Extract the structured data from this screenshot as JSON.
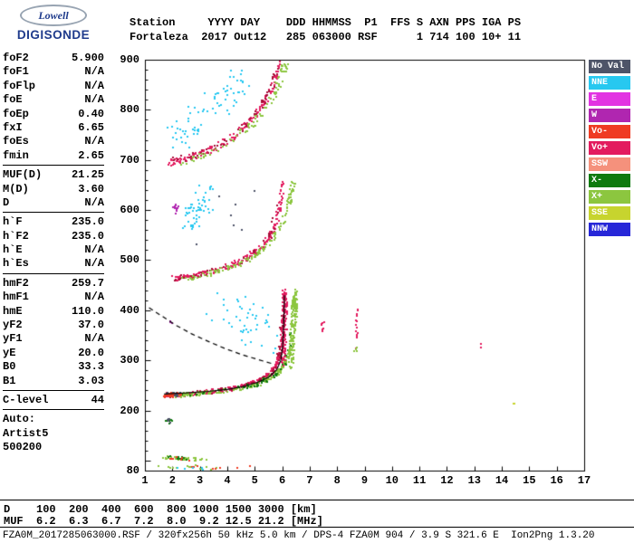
{
  "brand": {
    "name_top": "Lowell",
    "name_bottom": "DIGISONDE"
  },
  "header": {
    "line1": "Station     YYYY DAY    DDD HHMMSS  P1  FFS S AXN PPS IGA PS",
    "line2": "Fortaleza  2017 Out12   285 063000 RSF      1 714 100 10+ 11"
  },
  "params": [
    {
      "label": "foF2",
      "value": "5.900"
    },
    {
      "label": "foF1",
      "value": "N/A"
    },
    {
      "label": "foFlp",
      "value": "N/A"
    },
    {
      "label": "foE",
      "value": "N/A"
    },
    {
      "label": "foEp",
      "value": "0.40"
    },
    {
      "label": "fxI",
      "value": "6.65"
    },
    {
      "label": "foEs",
      "value": "N/A"
    },
    {
      "label": "fmin",
      "value": "2.65"
    },
    {
      "sep": true
    },
    {
      "label": "MUF(D)",
      "value": "21.25"
    },
    {
      "label": "M(D)",
      "value": "3.60"
    },
    {
      "label": "D",
      "value": "N/A"
    },
    {
      "sep": true
    },
    {
      "label": "h`F",
      "value": "235.0"
    },
    {
      "label": "h`F2",
      "value": "235.0"
    },
    {
      "label": "h`E",
      "value": "N/A"
    },
    {
      "label": "h`Es",
      "value": "N/A"
    },
    {
      "sep": true
    },
    {
      "label": "hmF2",
      "value": "259.7"
    },
    {
      "label": "hmF1",
      "value": "N/A"
    },
    {
      "label": "hmE",
      "value": "110.0"
    },
    {
      "label": "yF2",
      "value": "37.0"
    },
    {
      "label": "yF1",
      "value": "N/A"
    },
    {
      "label": "yE",
      "value": "20.0"
    },
    {
      "label": "B0",
      "value": "33.3"
    },
    {
      "label": "B1",
      "value": "3.03"
    },
    {
      "sep": true
    },
    {
      "label": "C-level",
      "value": "44"
    },
    {
      "sep": true
    },
    {
      "label": "Auto:",
      "value": ""
    },
    {
      "label": "Artist5",
      "value": ""
    },
    {
      "label": "500200",
      "value": ""
    }
  ],
  "footer": {
    "d_row": "D    100  200  400  600  800 1000 1500 3000 [km]",
    "muf_row": "MUF  6.2  6.3  6.7  7.2  8.0  9.2 12.5 21.2 [MHz]",
    "status": "FZA0M_2017285063000.RSF / 320fx256h 50 kHz 5.0 km / DPS-4 FZA0M 904 / 3.9 S 321.6 E  Ion2Png 1.3.20"
  },
  "chart_data": {
    "type": "scatter",
    "title": "Fortaleza ionogram 2017-285 06:30:00",
    "xlabel": "[MHz]",
    "ylabel": "[km]",
    "xlim": [
      1,
      17
    ],
    "ylim": [
      80,
      900
    ],
    "x_ticks": [
      1,
      2,
      3,
      4,
      5,
      6,
      7,
      8,
      9,
      10,
      11,
      12,
      13,
      14,
      15,
      16,
      17
    ],
    "y_tick_labels": [
      900,
      800,
      700,
      600,
      500,
      400,
      300,
      200,
      80
    ],
    "y_minor_step": 20,
    "grid": false,
    "legend_position": "right",
    "legend": [
      {
        "label": "No Val",
        "color": "#4e5468"
      },
      {
        "label": "NNE",
        "color": "#27c8f0"
      },
      {
        "label": "E",
        "color": "#e233e2"
      },
      {
        "label": "W",
        "color": "#b026b0"
      },
      {
        "label": "Vo-",
        "color": "#ef3b23"
      },
      {
        "label": "Vo+",
        "color": "#e31b5f"
      },
      {
        "label": "SSW",
        "color": "#f5917c"
      },
      {
        "label": "X-",
        "color": "#0f7a0f"
      },
      {
        "label": "X+",
        "color": "#8cc63f"
      },
      {
        "label": "SSE",
        "color": "#c7d42e"
      },
      {
        "label": "NNW",
        "color": "#2727d8"
      }
    ],
    "traces": [
      {
        "name": "1hop-o",
        "color": "#e31b5f",
        "count": 270,
        "jx": 0.06,
        "jy": 4,
        "points": [
          [
            1.75,
            233
          ],
          [
            2.2,
            234
          ],
          [
            2.7,
            236
          ],
          [
            3.2,
            239
          ],
          [
            3.7,
            242
          ],
          [
            4.2,
            246
          ],
          [
            4.6,
            251
          ],
          [
            5.0,
            258
          ],
          [
            5.3,
            266
          ],
          [
            5.55,
            276
          ],
          [
            5.75,
            291
          ],
          [
            5.88,
            313
          ],
          [
            5.96,
            348
          ],
          [
            6.02,
            395
          ],
          [
            6.06,
            438
          ]
        ]
      },
      {
        "name": "1hop-o-dark",
        "color": "#a80f38",
        "count": 70,
        "jx": 0.08,
        "jy": 5,
        "points": [
          [
            1.8,
            233
          ],
          [
            2.6,
            236
          ],
          [
            3.4,
            240
          ],
          [
            4.2,
            246
          ],
          [
            4.9,
            256
          ],
          [
            5.4,
            268
          ],
          [
            5.75,
            290
          ],
          [
            5.93,
            330
          ],
          [
            6.0,
            390
          ]
        ]
      },
      {
        "name": "1hop-x",
        "color": "#8cc63f",
        "count": 210,
        "jx": 0.07,
        "jy": 4,
        "points": [
          [
            2.1,
            232
          ],
          [
            2.7,
            234
          ],
          [
            3.3,
            237
          ],
          [
            3.9,
            241
          ],
          [
            4.5,
            246
          ],
          [
            5.0,
            253
          ],
          [
            5.4,
            262
          ],
          [
            5.75,
            274
          ],
          [
            6.0,
            289
          ],
          [
            6.2,
            312
          ],
          [
            6.34,
            348
          ],
          [
            6.43,
            398
          ],
          [
            6.47,
            436
          ]
        ]
      },
      {
        "name": "1hop-x-dark",
        "color": "#0f7a0f",
        "count": 45,
        "jx": 0.08,
        "jy": 4,
        "points": [
          [
            2.3,
            233
          ],
          [
            3.2,
            237
          ],
          [
            4.1,
            243
          ],
          [
            5.0,
            253
          ],
          [
            5.7,
            272
          ],
          [
            6.1,
            300
          ],
          [
            6.35,
            355
          ]
        ]
      },
      {
        "name": "1hop-o-col",
        "color": "#e31b5f",
        "count": 120,
        "jx": 0.09,
        "jy": 16,
        "points": [
          [
            6.0,
            300
          ],
          [
            6.03,
            350
          ],
          [
            6.06,
            400
          ],
          [
            6.05,
            435
          ]
        ]
      },
      {
        "name": "1hop-x-col",
        "color": "#8cc63f",
        "count": 120,
        "jx": 0.1,
        "jy": 16,
        "points": [
          [
            6.28,
            295
          ],
          [
            6.34,
            345
          ],
          [
            6.4,
            400
          ],
          [
            6.44,
            432
          ]
        ]
      },
      {
        "name": "start-blob-slate",
        "color": "#4e5468",
        "count": 26,
        "jx": 0.18,
        "jy": 4,
        "points": [
          [
            1.78,
            233
          ],
          [
            2.15,
            235
          ]
        ]
      },
      {
        "name": "start-blob-red",
        "color": "#ef3b23",
        "count": 22,
        "jx": 0.2,
        "jy": 4,
        "points": [
          [
            1.8,
            231
          ],
          [
            2.2,
            236
          ]
        ]
      },
      {
        "name": "2hop-o",
        "color": "#e31b5f",
        "count": 180,
        "jx": 0.07,
        "jy": 5,
        "points": [
          [
            1.9,
            464
          ],
          [
            2.4,
            468
          ],
          [
            2.9,
            473
          ],
          [
            3.4,
            479
          ],
          [
            3.9,
            487
          ],
          [
            4.4,
            498
          ],
          [
            4.8,
            511
          ],
          [
            5.2,
            527
          ],
          [
            5.5,
            546
          ],
          [
            5.7,
            568
          ],
          [
            5.85,
            600
          ],
          [
            5.95,
            635
          ],
          [
            6.02,
            658
          ]
        ]
      },
      {
        "name": "2hop-dark",
        "color": "#a80f38",
        "count": 46,
        "jx": 0.08,
        "jy": 6,
        "points": [
          [
            2.0,
            465
          ],
          [
            3.0,
            474
          ],
          [
            4.0,
            489
          ],
          [
            4.9,
            514
          ],
          [
            5.5,
            548
          ],
          [
            5.85,
            606
          ]
        ]
      },
      {
        "name": "2hop-x",
        "color": "#8cc63f",
        "count": 130,
        "jx": 0.08,
        "jy": 5,
        "points": [
          [
            2.3,
            463
          ],
          [
            3.0,
            470
          ],
          [
            3.7,
            480
          ],
          [
            4.4,
            494
          ],
          [
            5.0,
            512
          ],
          [
            5.5,
            536
          ],
          [
            5.9,
            566
          ],
          [
            6.15,
            600
          ],
          [
            6.3,
            640
          ],
          [
            6.4,
            660
          ]
        ]
      },
      {
        "name": "2hop-cyan",
        "color": "#27c8f0",
        "count": 55,
        "jx": 0.35,
        "jy": 26,
        "points": [
          [
            2.5,
            575
          ],
          [
            2.9,
            605
          ],
          [
            3.3,
            628
          ]
        ]
      },
      {
        "name": "2hop-purple",
        "color": "#b026b0",
        "count": 12,
        "jx": 0.08,
        "jy": 7,
        "points": [
          [
            2.05,
            600
          ],
          [
            2.18,
            612
          ]
        ]
      },
      {
        "name": "3hop-o",
        "color": "#e31b5f",
        "count": 160,
        "jx": 0.08,
        "jy": 6,
        "points": [
          [
            1.85,
            696
          ],
          [
            2.3,
            702
          ],
          [
            2.8,
            710
          ],
          [
            3.3,
            721
          ],
          [
            3.8,
            735
          ],
          [
            4.3,
            753
          ],
          [
            4.7,
            773
          ],
          [
            5.05,
            795
          ],
          [
            5.35,
            820
          ],
          [
            5.6,
            848
          ],
          [
            5.8,
            878
          ],
          [
            5.9,
            897
          ]
        ]
      },
      {
        "name": "3hop-dark",
        "color": "#a80f38",
        "count": 55,
        "jx": 0.1,
        "jy": 7,
        "points": [
          [
            2.0,
            700
          ],
          [
            2.9,
            712
          ],
          [
            3.8,
            736
          ],
          [
            4.6,
            768
          ],
          [
            5.2,
            806
          ],
          [
            5.6,
            850
          ],
          [
            5.85,
            890
          ]
        ]
      },
      {
        "name": "3hop-x",
        "color": "#8cc63f",
        "count": 95,
        "jx": 0.1,
        "jy": 7,
        "points": [
          [
            2.2,
            698
          ],
          [
            2.9,
            708
          ],
          [
            3.6,
            724
          ],
          [
            4.3,
            746
          ],
          [
            4.9,
            772
          ],
          [
            5.4,
            804
          ],
          [
            5.75,
            842
          ],
          [
            6.0,
            880
          ],
          [
            6.1,
            897
          ]
        ]
      },
      {
        "name": "3hop-cyan",
        "color": "#27c8f0",
        "count": 75,
        "jx": 0.35,
        "jy": 30,
        "points": [
          [
            2.1,
            735
          ],
          [
            2.6,
            765
          ],
          [
            3.1,
            792
          ],
          [
            3.6,
            816
          ],
          [
            4.1,
            840
          ],
          [
            4.6,
            866
          ]
        ]
      },
      {
        "name": "mid-cyan",
        "color": "#27c8f0",
        "count": 45,
        "jx": 0.5,
        "jy": 42,
        "points": [
          [
            3.6,
            420
          ],
          [
            4.3,
            392
          ],
          [
            5.0,
            366
          ],
          [
            5.5,
            346
          ]
        ]
      },
      {
        "name": "es-green",
        "color": "#8cc63f",
        "count": 30,
        "jx": 0.12,
        "jy": 3,
        "points": [
          [
            1.6,
            108
          ],
          [
            2.3,
            106
          ],
          [
            3.1,
            104
          ]
        ]
      },
      {
        "name": "es-darkgreen",
        "color": "#0f7a0f",
        "count": 12,
        "jx": 0.12,
        "jy": 3,
        "points": [
          [
            1.7,
            109
          ],
          [
            2.6,
            106
          ]
        ]
      },
      {
        "name": "es-red",
        "color": "#ef3b23",
        "count": 8,
        "jx": 0.15,
        "jy": 3,
        "points": [
          [
            1.8,
            107
          ],
          [
            2.5,
            105
          ]
        ]
      },
      {
        "name": "bottom-green",
        "color": "#8cc63f",
        "count": 14,
        "jx": 0.5,
        "jy": 5,
        "points": [
          [
            1.8,
            88
          ],
          [
            2.6,
            87
          ],
          [
            3.4,
            88
          ]
        ]
      },
      {
        "name": "bottom-red",
        "color": "#ef3b23",
        "count": 8,
        "jx": 0.4,
        "jy": 4,
        "points": [
          [
            2.2,
            86
          ],
          [
            3.0,
            88
          ],
          [
            4.5,
            87
          ]
        ]
      },
      {
        "name": "bottom-cyan",
        "color": "#27c8f0",
        "count": 5,
        "jx": 0.3,
        "jy": 4,
        "points": [
          [
            2.0,
            90
          ],
          [
            3.2,
            86
          ]
        ]
      },
      {
        "name": "cluster-180-green",
        "color": "#0f7a0f",
        "count": 10,
        "jx": 0.1,
        "jy": 5,
        "points": [
          [
            1.78,
            182
          ],
          [
            1.95,
            179
          ]
        ]
      },
      {
        "name": "cluster-180-slate",
        "color": "#4e5468",
        "count": 6,
        "jx": 0.08,
        "jy": 4,
        "points": [
          [
            1.85,
            184
          ],
          [
            1.9,
            180
          ]
        ]
      },
      {
        "name": "spur-8p7-red",
        "color": "#e31b5f",
        "count": 16,
        "jx": 0.04,
        "jy": 18,
        "points": [
          [
            8.64,
            338
          ],
          [
            8.67,
            365
          ],
          [
            8.7,
            388
          ]
        ]
      },
      {
        "name": "spur-8p7-green",
        "color": "#8cc63f",
        "count": 4,
        "jx": 0.05,
        "jy": 5,
        "points": [
          [
            8.62,
            322
          ],
          [
            8.66,
            325
          ]
        ]
      },
      {
        "name": "spur-7p4-red",
        "color": "#e31b5f",
        "count": 8,
        "jx": 0.05,
        "jy": 9,
        "points": [
          [
            7.43,
            365
          ],
          [
            7.47,
            380
          ]
        ]
      },
      {
        "name": "spur-13p2-red",
        "color": "#e31b5f",
        "count": 3,
        "jx": 0.03,
        "jy": 5,
        "points": [
          [
            13.2,
            330
          ],
          [
            13.22,
            334
          ]
        ]
      },
      {
        "name": "spur-14p4-olive",
        "color": "#c7d42e",
        "count": 2,
        "jx": 0.04,
        "jy": 3,
        "points": [
          [
            14.4,
            214
          ],
          [
            14.42,
            215
          ]
        ]
      },
      {
        "name": "purple-single",
        "color": "#b026b0",
        "count": 3,
        "jx": 0.04,
        "jy": 4,
        "points": [
          [
            1.9,
            378
          ],
          [
            1.92,
            380
          ]
        ]
      },
      {
        "name": "noise-slate",
        "color": "#4e5468",
        "count": 7,
        "jx": 1.0,
        "jy": 55,
        "points": [
          [
            3.2,
            560
          ],
          [
            4.2,
            620
          ]
        ]
      }
    ],
    "profile_lines": [
      {
        "name": "true-height-profile-dashed",
        "style": "dashed",
        "points": [
          [
            1.15,
            405
          ],
          [
            1.6,
            389
          ],
          [
            2.1,
            371
          ],
          [
            2.7,
            353
          ],
          [
            3.3,
            338
          ],
          [
            3.9,
            324
          ],
          [
            4.5,
            312
          ],
          [
            5.1,
            302
          ],
          [
            5.6,
            294
          ]
        ]
      },
      {
        "name": "true-height-profile-solid",
        "style": "solid",
        "points": [
          [
            1.7,
            233
          ],
          [
            2.5,
            235
          ],
          [
            3.3,
            238
          ],
          [
            4.0,
            242
          ],
          [
            4.6,
            248
          ],
          [
            5.1,
            256
          ],
          [
            5.5,
            266
          ],
          [
            5.8,
            281
          ],
          [
            5.95,
            300
          ],
          [
            6.02,
            330
          ],
          [
            6.06,
            375
          ],
          [
            6.08,
            430
          ]
        ]
      }
    ]
  }
}
